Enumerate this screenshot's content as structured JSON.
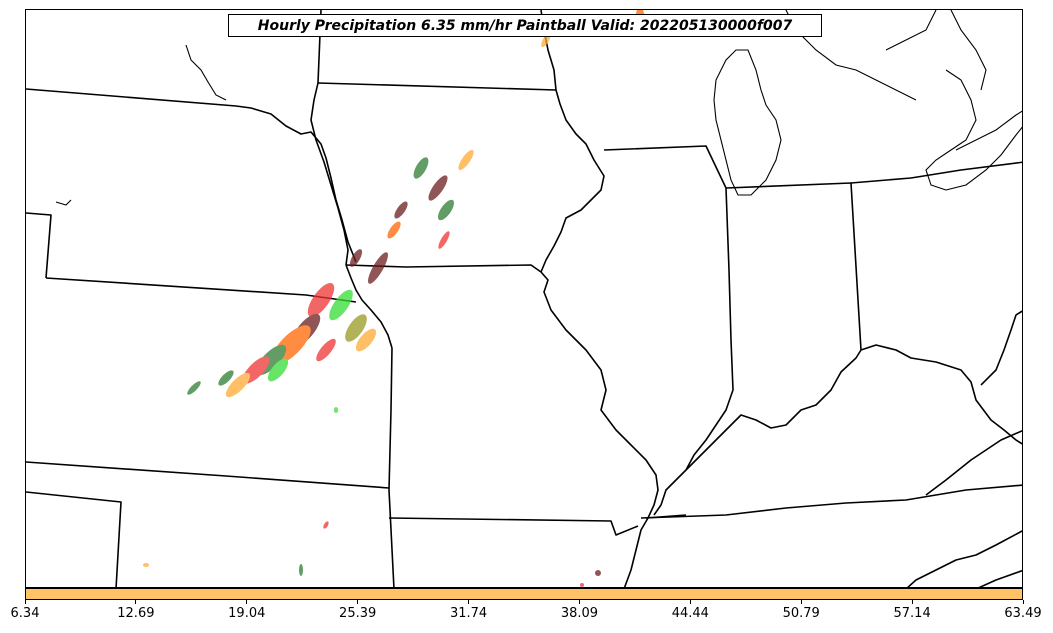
{
  "title": "Hourly Precipitation 6.35 mm/hr Paintball Valid: 202205130000f007",
  "colorbar": {
    "color": "#ffc266",
    "ticks": [
      "6.34",
      "12.69",
      "19.04",
      "25.39",
      "31.74",
      "38.09",
      "44.44",
      "50.79",
      "57.14",
      "63.49"
    ]
  },
  "palette": {
    "dark_green": "#2e7d32",
    "bright_green": "#33dd33",
    "red": "#ee3333",
    "orange": "#ff6600",
    "light_orange": "#ffaa33",
    "dark_brown": "#6b1e1e",
    "olive": "#999922"
  }
}
